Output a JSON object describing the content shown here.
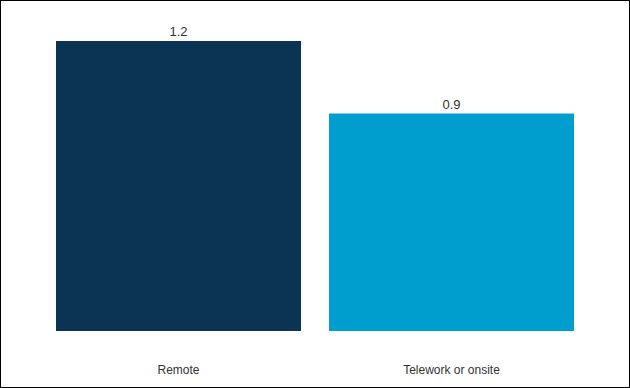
{
  "chart_data": {
    "type": "bar",
    "categories": [
      "Remote",
      "Telework or onsite"
    ],
    "values": [
      1.2,
      0.9
    ],
    "colors": [
      "#0b3354",
      "#009dcf"
    ],
    "ylim": [
      0,
      1.2
    ],
    "grid": false,
    "data_labels": true,
    "tick_labels": "x"
  }
}
